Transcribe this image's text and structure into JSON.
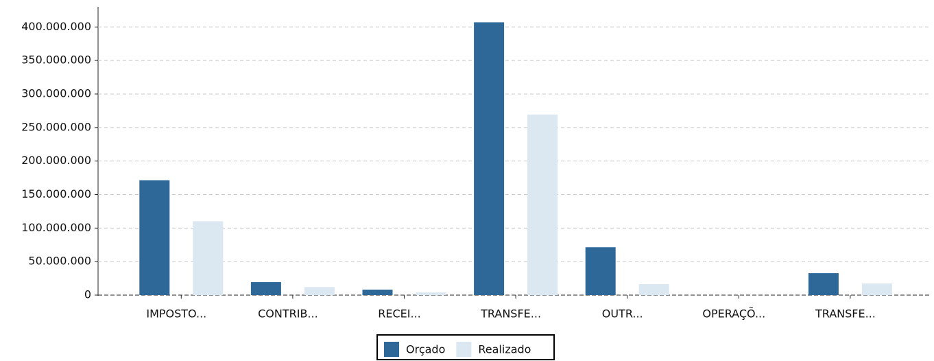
{
  "chart_data": {
    "type": "bar",
    "categories": [
      "IMPOSTO...",
      "CONTRIB...",
      "RECEI...",
      "TRANSFE...",
      "OUTR...",
      "OPERAÇÕ...",
      "TRANSFE..."
    ],
    "series": [
      {
        "name": "Orçado",
        "color": "#2e6898",
        "values": [
          171400000,
          19400000,
          8200000,
          407000000,
          71400000,
          0,
          32700000
        ]
      },
      {
        "name": "Realizado",
        "color": "#dbe7f1",
        "values": [
          110200000,
          12000000,
          4000000,
          269400000,
          16300000,
          0,
          17300000
        ]
      }
    ],
    "ylim": [
      0,
      430000000
    ],
    "yticks": [
      0,
      {
        "value": 50000000,
        "label": "50.000.000"
      },
      {
        "value": 100000000,
        "label": "100.000.000"
      },
      {
        "value": 150000000,
        "label": "150.000.000"
      },
      {
        "value": 200000000,
        "label": "200.000.000"
      },
      {
        "value": 250000000,
        "label": "250.000.000"
      },
      {
        "value": 300000000,
        "label": "300.000.000"
      },
      {
        "value": 350000000,
        "label": "350.000.000"
      },
      {
        "value": 400000000,
        "label": "400.000.000"
      }
    ],
    "grid": true,
    "legend": "bottom"
  }
}
